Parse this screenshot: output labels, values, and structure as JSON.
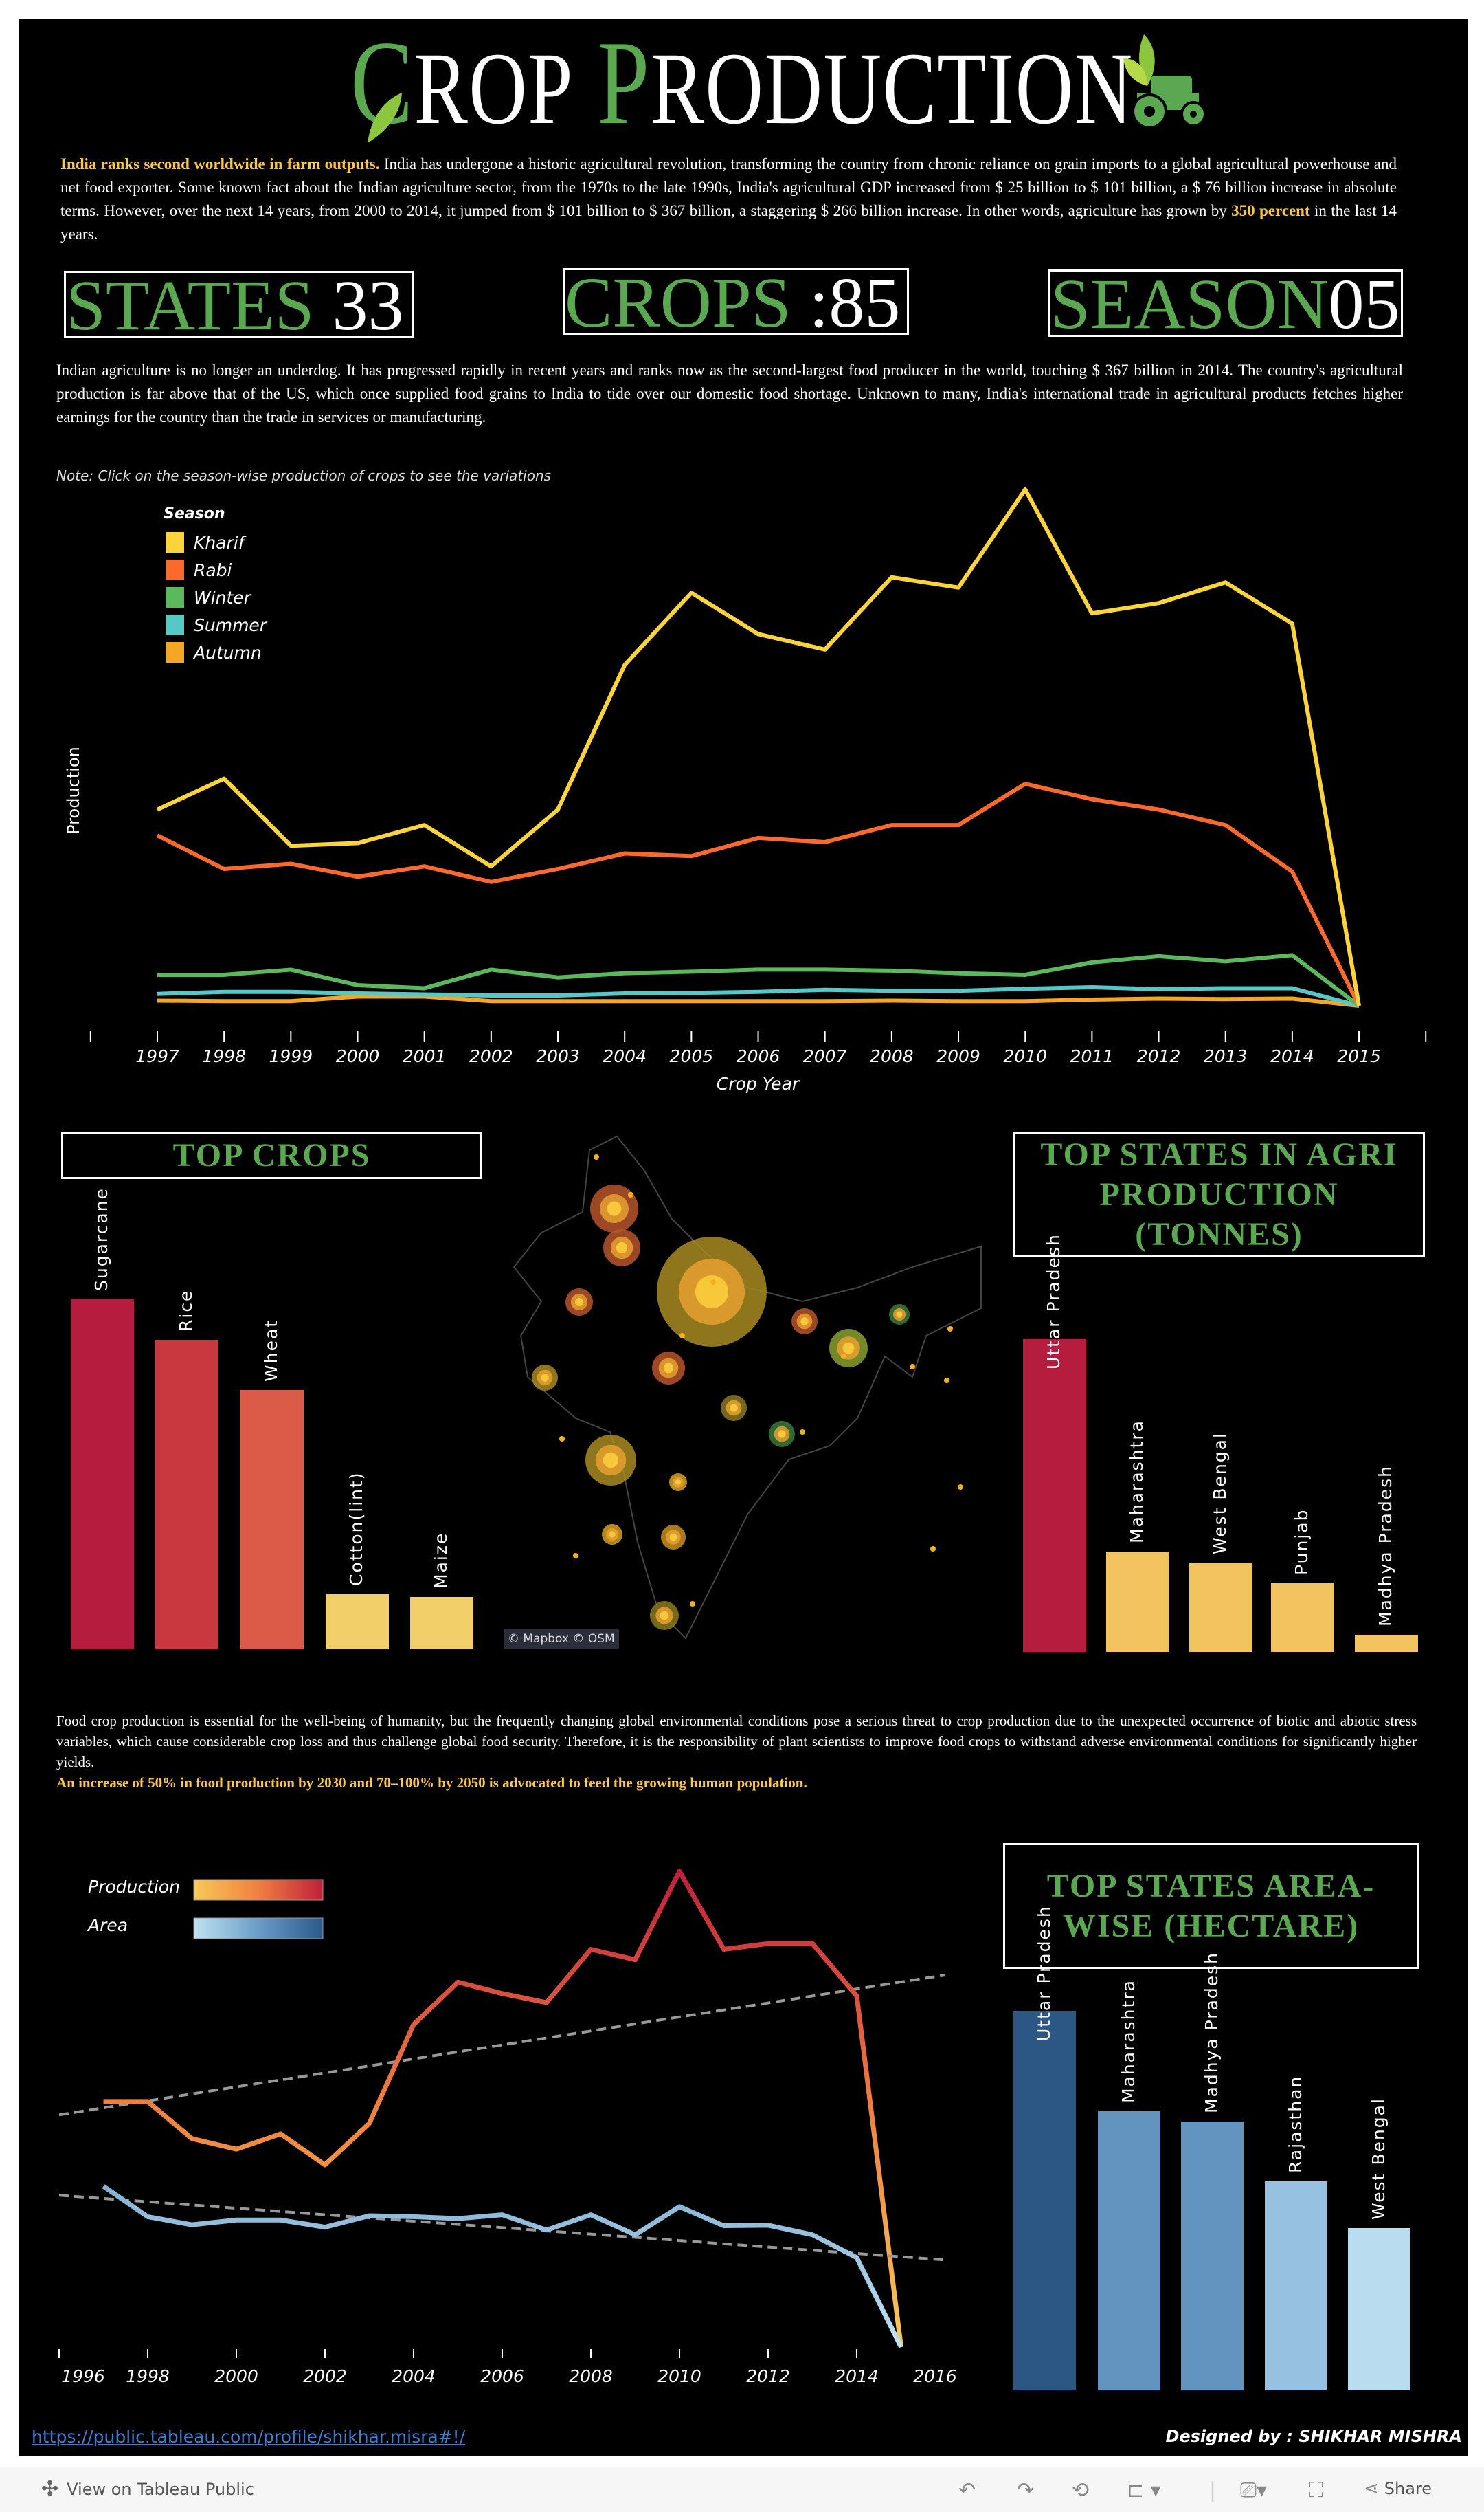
{
  "title": {
    "word1": "CROP",
    "word2": "PRODUCTION"
  },
  "intro": {
    "lead": "India ranks second worldwide in farm outputs.",
    "body1": " India has undergone a historic agricultural revolution, transforming the country from chronic reliance on grain imports to a global agricultural powerhouse and net food exporter. Some known fact about the Indian agriculture sector, from the 1970s to the late 1990s, India's agricultural GDP increased from $ 25 billion to $ 101 billion, a $ 76 billion increase in absolute terms. However, over the next 14 years, from 2000 to 2014, it jumped from $ 101 billion to $ 367 billion, a staggering $ 266 billion increase. In other words, agriculture has grown by ",
    "highlight": "350 percent",
    "body2": " in the last 14 years."
  },
  "kpis": [
    {
      "label": "STATES",
      "value": "33"
    },
    {
      "label": "CROPS",
      "value": ":85"
    },
    {
      "label": "SEASON",
      "value": "05"
    }
  ],
  "para2": "Indian agriculture is no longer an underdog. It has progressed rapidly in recent years and ranks now as the second-largest food producer in the world, touching $ 367 billion in 2014. The country's agricultural production is far above that of the US, which once supplied food grains to India to tide over our domestic food shortage. Unknown to many, India's international trade in agricultural products fetches higher earnings for the country than the trade in services or manufacturing.",
  "note": "Note: Click on the season-wise production of crops to see the variations",
  "para3": "Food crop production is essential for the well-being of humanity, but the frequently changing global environmental conditions pose a serious threat to crop production due to the unexpected occurrence of biotic and abiotic stress variables, which cause considerable crop loss and thus challenge global food security. Therefore, it is the responsibility of plant scientists to improve food crops to withstand adverse environmental conditions for significantly higher yields.",
  "para3_highlight": "An increase of 50% in food production by 2030 and 70–100% by 2050 is advocated to feed the growing human population.",
  "map": {
    "attribution": "© Mapbox  © OSM"
  },
  "footer": {
    "link": "https://public.tableau.com/profile/shikhar.misra#!/",
    "credit": "Designed by : SHIKHAR MISHRA",
    "view_label": "View on Tableau Public",
    "share_label": "Share"
  },
  "colors": {
    "accent_green": "#5aa84f",
    "highlight": "#ffc64a",
    "background": "#000000"
  },
  "chart_data": [
    {
      "type": "line",
      "xlabel": "Crop Year",
      "ylabel": "Production",
      "legend_title": "Season",
      "legend_position": "top-left",
      "grid": false,
      "x": [
        1997,
        1998,
        1999,
        2000,
        2001,
        2002,
        2003,
        2004,
        2005,
        2006,
        2007,
        2008,
        2009,
        2010,
        2011,
        2012,
        2013,
        2014,
        2015
      ],
      "note_values": "relative (no y-axis ticks shown)",
      "series": [
        {
          "name": "Kharif",
          "color": "#fbd33b",
          "values": [
            38,
            44,
            31,
            31.5,
            35,
            27,
            38,
            66,
            80,
            72,
            69,
            83,
            81,
            100,
            76,
            78,
            82,
            74,
            0
          ]
        },
        {
          "name": "Rabi",
          "color": "#fb6a2c",
          "values": [
            33,
            26.5,
            27.5,
            25,
            27,
            24,
            26.5,
            29.5,
            29,
            32.5,
            31.7,
            35,
            35,
            43,
            40,
            38,
            35,
            26,
            0
          ]
        },
        {
          "name": "Winter",
          "color": "#5cb85c",
          "values": [
            6,
            6,
            7,
            4,
            3.4,
            7,
            5.5,
            6.3,
            6.6,
            7,
            7,
            6.8,
            6.3,
            6,
            8.4,
            9.6,
            8.6,
            9.8,
            0
          ]
        },
        {
          "name": "Summer",
          "color": "#56c8c8",
          "values": [
            2.3,
            2.7,
            2.7,
            2.4,
            2.2,
            2,
            2,
            2.4,
            2.5,
            2.7,
            3.1,
            2.9,
            2.9,
            3.3,
            3.6,
            3.2,
            3.4,
            3.4,
            0
          ]
        },
        {
          "name": "Autumn",
          "color": "#f5a623",
          "values": [
            1,
            0.9,
            0.9,
            1.8,
            1.8,
            0.9,
            0.9,
            0.9,
            0.9,
            0.9,
            0.9,
            1,
            0.9,
            0.9,
            1.2,
            1.4,
            1.3,
            1.4,
            0
          ]
        }
      ]
    },
    {
      "type": "bar",
      "title": "TOP CROPS",
      "categories": [
        "Sugarcane",
        "Rice",
        "Wheat",
        "Cotton(lint)",
        "Maize"
      ],
      "values": [
        100,
        88.5,
        74,
        15.7,
        14.9
      ],
      "colors": [
        "#b61c3e",
        "#c9373f",
        "#dc5a48",
        "#f3cf6a",
        "#f3cf6a"
      ]
    },
    {
      "type": "bar",
      "title": "TOP STATES IN AGRI PRODUCTION (TONNES)",
      "categories": [
        "Uttar Pradesh",
        "Maharashtra",
        "West Bengal",
        "Punjab",
        "Madhya Pradesh"
      ],
      "values": [
        100,
        32,
        28.6,
        22,
        5.6
      ],
      "colors": [
        "#b61c3e",
        "#f2c45e",
        "#f2c45e",
        "#f2c45e",
        "#f2c45e"
      ]
    },
    {
      "type": "line",
      "legend_position": "top-left",
      "xlim": [
        1996,
        2016
      ],
      "x": [
        1997,
        1998,
        1999,
        2000,
        2001,
        2002,
        2003,
        2004,
        2005,
        2006,
        2007,
        2008,
        2009,
        2010,
        2011,
        2012,
        2013,
        2014,
        2015
      ],
      "xticks": [
        1996,
        1998,
        2000,
        2002,
        2004,
        2006,
        2008,
        2010,
        2012,
        2014,
        2016
      ],
      "series": [
        {
          "name": "Production",
          "values": [
            51.6,
            51.6,
            43.8,
            41.6,
            44.8,
            38.3,
            47,
            67.8,
            76.7,
            74.3,
            72.4,
            83.6,
            81.4,
            100,
            83.6,
            84.8,
            84.8,
            73.8,
            0
          ],
          "trend": [
            48.8,
            78.2
          ],
          "gradient": [
            "#f7c95a",
            "#f08040",
            "#c0203a"
          ]
        },
        {
          "name": "Area",
          "values": [
            33.8,
            27.4,
            25.7,
            26.7,
            26.7,
            25.2,
            27.6,
            27.4,
            27,
            27.8,
            24.6,
            27.8,
            23.6,
            29.5,
            25.5,
            25.6,
            23.6,
            18.8,
            0
          ],
          "trend": [
            31.9,
            18.3
          ],
          "gradient": [
            "#c0e2f2",
            "#6a9cc8",
            "#2b5a8a"
          ]
        }
      ]
    },
    {
      "type": "bar",
      "title": "TOP STATES AREA-WISE (HECTARE)",
      "categories": [
        "Uttar Pradesh",
        "Maharashtra",
        "Madhya Pradesh",
        "Rajasthan",
        "West Bengal"
      ],
      "values": [
        100,
        73.5,
        70.8,
        55,
        42.7
      ],
      "colors": [
        "#2c5785",
        "#6294bf",
        "#6294bf",
        "#96c1e0",
        "#b9dcef"
      ]
    }
  ]
}
